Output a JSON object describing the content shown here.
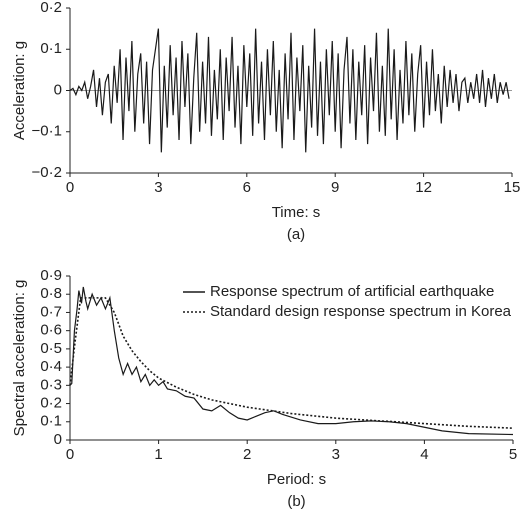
{
  "chart_data": [
    {
      "type": "line",
      "xlabel": "Time: s",
      "ylabel": "Acceleration: g",
      "caption": "(a)",
      "xlim": [
        0,
        15
      ],
      "xticks": [
        0,
        3,
        6,
        9,
        12,
        15
      ],
      "ylim": [
        -0.2,
        0.2
      ],
      "yticks": [
        {
          "value": -0.2,
          "label": "−0·2"
        },
        {
          "value": -0.1,
          "label": "−0·1"
        },
        0,
        {
          "value": 0.1,
          "label": "0·1"
        },
        {
          "value": 0.2,
          "label": "0·2"
        }
      ],
      "zero_line": true,
      "series": [
        {
          "color": "#1a1a1a",
          "line_style": "solid",
          "x": [
            0.0,
            0.1,
            0.2,
            0.3,
            0.4,
            0.5,
            0.6,
            0.7,
            0.8,
            0.9,
            1.0,
            1.1,
            1.2,
            1.3,
            1.4,
            1.5,
            1.6,
            1.7,
            1.8,
            1.9,
            2.0,
            2.1,
            2.2,
            2.3,
            2.4,
            2.5,
            2.6,
            2.7,
            2.8,
            2.9,
            3.0,
            3.1,
            3.2,
            3.3,
            3.4,
            3.5,
            3.6,
            3.7,
            3.8,
            3.9,
            4.0,
            4.1,
            4.2,
            4.3,
            4.4,
            4.5,
            4.6,
            4.7,
            4.8,
            4.9,
            5.0,
            5.1,
            5.2,
            5.3,
            5.4,
            5.5,
            5.6,
            5.7,
            5.8,
            5.9,
            6.0,
            6.1,
            6.2,
            6.3,
            6.4,
            6.5,
            6.6,
            6.7,
            6.8,
            6.9,
            7.0,
            7.1,
            7.2,
            7.3,
            7.4,
            7.5,
            7.6,
            7.7,
            7.8,
            7.9,
            8.0,
            8.1,
            8.2,
            8.3,
            8.4,
            8.5,
            8.6,
            8.7,
            8.8,
            8.9,
            9.0,
            9.1,
            9.2,
            9.3,
            9.4,
            9.5,
            9.6,
            9.7,
            9.8,
            9.9,
            10.0,
            10.1,
            10.2,
            10.3,
            10.4,
            10.5,
            10.6,
            10.7,
            10.8,
            10.9,
            11.0,
            11.1,
            11.2,
            11.3,
            11.4,
            11.5,
            11.6,
            11.7,
            11.8,
            11.9,
            12.0,
            12.1,
            12.2,
            12.3,
            12.4,
            12.5,
            12.6,
            12.7,
            12.8,
            12.9,
            13.0,
            13.1,
            13.2,
            13.3,
            13.4,
            13.5,
            13.6,
            13.7,
            13.8,
            13.9,
            14.0,
            14.1,
            14.2,
            14.3,
            14.4,
            14.5,
            14.6,
            14.7,
            14.8,
            14.9
          ],
          "values": [
            0,
            0.005,
            -0.01,
            0.01,
            0,
            0.02,
            -0.02,
            0.01,
            0.05,
            -0.04,
            0.03,
            -0.06,
            0.02,
            0.04,
            -0.08,
            0.06,
            -0.03,
            0.1,
            -0.12,
            0.08,
            -0.05,
            0.12,
            -0.1,
            0.04,
            0.09,
            -0.08,
            0.07,
            -0.13,
            0.05,
            0.1,
            0.15,
            -0.15,
            0.06,
            -0.09,
            0.11,
            -0.06,
            0.08,
            -0.12,
            0.12,
            -0.04,
            0.09,
            -0.13,
            0.03,
            0.14,
            -0.1,
            0.07,
            -0.08,
            0.13,
            -0.11,
            0.05,
            -0.07,
            0.1,
            -0.12,
            0.08,
            -0.05,
            0.13,
            -0.09,
            0.06,
            -0.13,
            0.11,
            -0.04,
            0.09,
            -0.11,
            0.15,
            -0.08,
            0.07,
            -0.12,
            0.1,
            -0.06,
            0.12,
            -0.1,
            0.05,
            -0.14,
            0.09,
            -0.07,
            0.14,
            -0.12,
            0.08,
            -0.05,
            0.11,
            -0.15,
            0.06,
            -0.09,
            0.15,
            -0.11,
            0.07,
            -0.13,
            0.1,
            -0.06,
            0.12,
            -0.1,
            0.09,
            -0.14,
            0.05,
            0.13,
            -0.08,
            0.1,
            -0.12,
            0.07,
            -0.06,
            0.11,
            -0.13,
            0.08,
            -0.05,
            0.14,
            -0.1,
            0.06,
            -0.11,
            0.15,
            -0.07,
            0.1,
            -0.12,
            0.05,
            -0.08,
            0.12,
            -0.06,
            0.09,
            -0.1,
            0.04,
            0.11,
            -0.09,
            0.07,
            -0.06,
            0.1,
            -0.05,
            0.04,
            -0.08,
            0.06,
            -0.04,
            0.05,
            -0.03,
            0.04,
            -0.05,
            0.02,
            0.03,
            -0.03,
            0.02,
            -0.02,
            0.04,
            -0.03,
            0.05,
            -0.04,
            0.03,
            -0.02,
            0.04,
            -0.03,
            0.02,
            -0.01,
            0.02,
            -0.02
          ]
        }
      ]
    },
    {
      "type": "line",
      "xlabel": "Period: s",
      "ylabel": "Spectral acceleration: g",
      "caption": "(b)",
      "xlim": [
        0,
        5
      ],
      "xticks": [
        0,
        1,
        2,
        3,
        4,
        5
      ],
      "ylim": [
        0,
        0.9
      ],
      "yticks": [
        0,
        {
          "value": 0.1,
          "label": "0·1"
        },
        {
          "value": 0.2,
          "label": "0·2"
        },
        {
          "value": 0.3,
          "label": "0·3"
        },
        {
          "value": 0.4,
          "label": "0·4"
        },
        {
          "value": 0.5,
          "label": "0·5"
        },
        {
          "value": 0.6,
          "label": "0·6"
        },
        {
          "value": 0.7,
          "label": "0·7"
        },
        {
          "value": 0.8,
          "label": "0·8"
        },
        {
          "value": 0.9,
          "label": "0·9"
        }
      ],
      "legend": "top-right",
      "series": [
        {
          "name": "Response spectrum of artificial earthquake",
          "color": "#1a1a1a",
          "line_style": "solid",
          "x": [
            0,
            0.02,
            0.05,
            0.08,
            0.1,
            0.13,
            0.15,
            0.18,
            0.2,
            0.25,
            0.3,
            0.35,
            0.4,
            0.45,
            0.5,
            0.55,
            0.6,
            0.65,
            0.7,
            0.75,
            0.8,
            0.85,
            0.9,
            0.95,
            1.0,
            1.05,
            1.1,
            1.2,
            1.3,
            1.4,
            1.5,
            1.6,
            1.7,
            1.8,
            1.9,
            2.0,
            2.1,
            2.2,
            2.3,
            2.4,
            2.6,
            2.8,
            3.0,
            3.2,
            3.4,
            3.6,
            3.8,
            4.0,
            4.2,
            4.5,
            5.0
          ],
          "values": [
            0.3,
            0.31,
            0.6,
            0.72,
            0.82,
            0.75,
            0.84,
            0.76,
            0.72,
            0.8,
            0.74,
            0.78,
            0.72,
            0.78,
            0.6,
            0.45,
            0.36,
            0.42,
            0.36,
            0.4,
            0.32,
            0.36,
            0.3,
            0.33,
            0.3,
            0.32,
            0.28,
            0.27,
            0.24,
            0.23,
            0.17,
            0.16,
            0.19,
            0.15,
            0.12,
            0.11,
            0.13,
            0.15,
            0.16,
            0.14,
            0.11,
            0.09,
            0.09,
            0.1,
            0.105,
            0.1,
            0.09,
            0.07,
            0.05,
            0.035,
            0.03
          ]
        },
        {
          "name": "Standard design response spectrum in Korea",
          "color": "#1a1a1a",
          "line_style": "dotted",
          "x": [
            0,
            0.06,
            0.12,
            0.2,
            0.3,
            0.4,
            0.5,
            0.6,
            0.7,
            0.8,
            0.9,
            1.0,
            1.2,
            1.4,
            1.6,
            1.8,
            2.0,
            2.5,
            3.0,
            3.5,
            4.0,
            4.5,
            5.0
          ],
          "values": [
            0.3,
            0.55,
            0.78,
            0.78,
            0.78,
            0.78,
            0.7,
            0.57,
            0.49,
            0.43,
            0.38,
            0.34,
            0.29,
            0.25,
            0.22,
            0.2,
            0.18,
            0.145,
            0.12,
            0.105,
            0.09,
            0.075,
            0.065
          ]
        }
      ]
    }
  ]
}
